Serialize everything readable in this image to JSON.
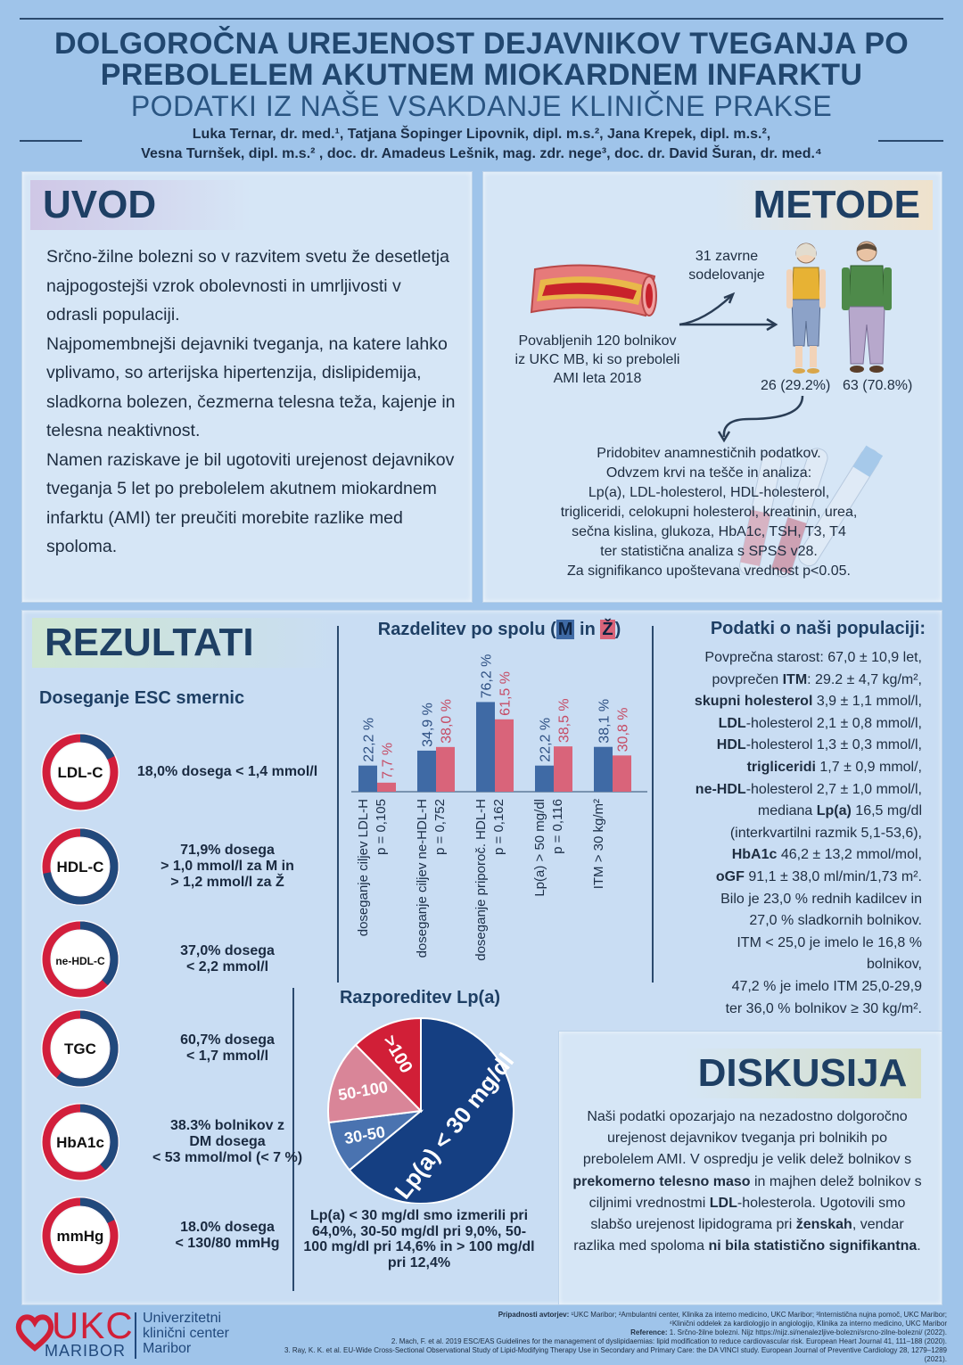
{
  "header": {
    "title_line1": "DOLGOROČNA UREJENOST DEJAVNIKOV TVEGANJA PO",
    "title_line2": "PREBOLELEM AKUTNEM MIOKARDNEM INFARKTU",
    "subtitle": "PODATKI IZ NAŠE VSAKDANJE KLINIČNE PRAKSE",
    "authors_line1": "Luka Ternar, dr. med.¹, Tatjana Šopinger Lipovnik, dipl. m.s.², Jana Krepek, dipl. m.s.²,",
    "authors_line2": "Vesna Turnšek, dipl. m.s.² , doc. dr. Amadeus Lešnik, mag. zdr. nege³, doc. dr. David Šuran, dr. med.⁴"
  },
  "uvod": {
    "heading": "UVOD",
    "paragraphs": [
      "Srčno-žilne bolezni so v razvitem svetu že desetletja najpogostejši vzrok obolevnosti in umrljivosti v odrasli populaciji.",
      "Najpomembnejši dejavniki tveganja, na katere lahko vplivamo, so arterijska hipertenzija, dislipidemija, sladkorna bolezen, čezmerna telesna teža, kajenje in telesna neaktivnost.",
      "Namen raziskave je bil ugotoviti urejenost dejavnikov tveganja 5 let po prebolelem akutnem miokardnem infarktu (AMI) ter preučiti morebite razlike med spoloma."
    ]
  },
  "metode": {
    "heading": "METODE",
    "invited": "Povabljenih 120 bolnikov iz UKC MB, ki so preboleli AMI leta 2018",
    "participated": "31 zavrne sodelovanje",
    "women": "26 (29.2%)",
    "men": "63 (70.8%)",
    "procedures": [
      "Pridobitev anamnestičnih podatkov.",
      "Odvzem krvi na tešče in analiza:",
      "Lp(a), LDL-holesterol, HDL-holesterol,",
      "trigliceridi, celokupni holesterol, kreatinin, urea,",
      "sečna kislina, glukoza, HbA1c, TSH, T3, T4",
      "ter statistična analiza s SPSS v28.",
      "Za signifikanco upoštevana vrednost p<0.05."
    ]
  },
  "rezultati": {
    "heading": "REZULTATI",
    "esc_heading": "Doseganje ESC smernic",
    "rings": [
      {
        "label": "LDL-C",
        "pct": 18.0,
        "lines": [
          "18,0% dosega < 1,4 mmol/l"
        ]
      },
      {
        "label": "HDL-C",
        "pct": 71.9,
        "lines": [
          "71,9% dosega",
          "> 1,0 mmol/l za M in",
          "> 1,2 mmol/l za Ž"
        ]
      },
      {
        "label": "ne-HDL-C",
        "pct": 37.0,
        "lines": [
          "37,0% dosega",
          "< 2,2 mmol/l"
        ]
      },
      {
        "label": "TGC",
        "pct": 60.7,
        "lines": [
          "60,7% dosega",
          "< 1,7 mmol/l"
        ]
      },
      {
        "label": "HbA1c",
        "pct": 38.3,
        "lines": [
          "38.3% bolnikov z",
          "DM dosega",
          "< 53 mmol/mol (< 7 %)"
        ]
      },
      {
        "label": "mmHg",
        "pct": 18.0,
        "lines": [
          "18.0% dosega",
          "< 130/80 mmHg"
        ]
      }
    ],
    "colors": {
      "achieved": "#21497c",
      "not_achieved": "#d21f3c"
    }
  },
  "chart_data": [
    {
      "type": "bar",
      "title": "Razdelitev po spolu (M in Ž)",
      "title_prefix": "Razdelitev po spolu (",
      "title_m": "M",
      "title_mid": " in ",
      "title_z": "Ž",
      "title_suffix": ")",
      "categories": [
        "doseganje ciljev LDL-H|p = 0,105",
        "doseganje ciljev ne-HDL-H|p = 0,752",
        "doseganje priporoč. HDL-H|p = 0,162",
        "Lp(a) > 50 mg/dl|p = 0,116",
        "ITM > 30 kg/m²"
      ],
      "series": [
        {
          "name": "M",
          "values": [
            22.2,
            34.9,
            76.2,
            22.2,
            38.1
          ],
          "labels": [
            "22,2 %",
            "34,9 %",
            "76,2 %",
            "22,2 %",
            "38,1 %"
          ],
          "color": "#3f6aa5"
        },
        {
          "name": "Ž",
          "values": [
            7.7,
            38.0,
            61.5,
            38.5,
            30.8
          ],
          "labels": [
            "7,7 %",
            "38,0 %",
            "61,5 %",
            "38,5 %",
            "30,8 %"
          ],
          "color": "#d9647a"
        }
      ],
      "ylim": [
        0,
        100
      ]
    },
    {
      "type": "pie",
      "title": "Razporeditev Lp(a)",
      "slices": [
        {
          "label": "Lp(a) < 30 mg/dl",
          "value": 64.0,
          "color": "#153f82"
        },
        {
          "label": "30-50",
          "value": 9.0,
          "color": "#4a73b0"
        },
        {
          "label": "50-100",
          "value": 14.6,
          "color": "#d98598"
        },
        {
          "label": ">100",
          "value": 12.4,
          "color": "#d11f37"
        }
      ],
      "caption": "Lp(a) < 30 mg/dl smo izmerili pri 64,0%, 30-50 mg/dl pri 9,0%, 50-100 mg/dl pri 14,6% in > 100 mg/dl pri 12,4%"
    }
  ],
  "populacija": {
    "heading": "Podatki o naši populaciji:",
    "lines": [
      "Povprečna starost: 67,0 ± 10,9 let,",
      "povprečen ITM: 29.2 ± 4,7 kg/m²,",
      "skupni holesterol 3,9 ± 1,1 mmol/l,",
      "LDL-holesterol 2,1 ± 0,8 mmol/l,",
      "HDL-holesterol 1,3 ± 0,3 mmol/l,",
      "trigliceridi 1,7 ± 0,9 mmol/,",
      "ne-HDL-holesterol 2,7 ± 1,0 mmol/l,",
      "mediana Lp(a) 16,5 mg/dl",
      "(interkvartilni razmik 5,1-53,6),",
      "HbA1c 46,2 ± 13,2 mmol/mol,",
      "oGF 91,1 ± 38,0 ml/min/1,73 m².",
      "Bilo je 23,0 % rednih kadilcev in",
      "27,0 % sladkornih bolnikov.",
      "ITM < 25,0 je imelo le 16,8 %",
      "bolnikov,",
      "47,2 % je imelo ITM 25,0-29,9",
      "ter 36,0 % bolnikov ≥ 30 kg/m²."
    ]
  },
  "diskusija": {
    "heading": "DISKUSIJA",
    "text": "Naši podatki opozarjajo na nezadostno dolgoročno urejenost dejavnikov tveganja pri bolnikih po prebolelem AMI. V ospredju je velik delež bolnikov s prekomerno telesno maso in majhen delež bolnikov s ciljnimi vrednostmi LDL-holesterola. Ugotovili smo slabšo urejenost lipidograma pri ženskah, vendar razlika med spoloma ni bila statistično signifikantna."
  },
  "footer": {
    "logo_ukc": "UKC",
    "logo_maribor": "MARIBOR",
    "inst_line1": "Univerzitetni",
    "inst_line2": "klinični center",
    "inst_line3": "Maribor",
    "affiliations_label": "Pripadnosti avtorjev:",
    "affiliations": " ¹UKC Maribor; ²Ambulantni center, Klinika za interno medicino, UKC Maribor; ³Internistična nujna pomoč, UKC Maribor;",
    "affiliations2": "⁴Klinični oddelek za kardiologijo in angiologijo, Klinika za interno medicino, UKC Maribor",
    "references_label": "Reference:",
    "ref1": " 1. Srčno-žilne bolezni. Nijz https://nijz.si/nenalezljive-bolezni/srcno-zilne-bolezni/ (2022).",
    "ref2": "2. Mach, F. et al. 2019 ESC/EAS Guidelines for the management of dyslipidaemias: lipid modification to reduce cardiovascular risk. European Heart Journal 41, 111–188 (2020).",
    "ref3": "3. Ray, K. K. et al. EU-Wide Cross-Sectional Observational Study of Lipid-Modifying Therapy Use in Secondary and Primary Care: the DA VINCI study. European Journal of Preventive Cardiology 28, 1279–1289 (2021)."
  }
}
